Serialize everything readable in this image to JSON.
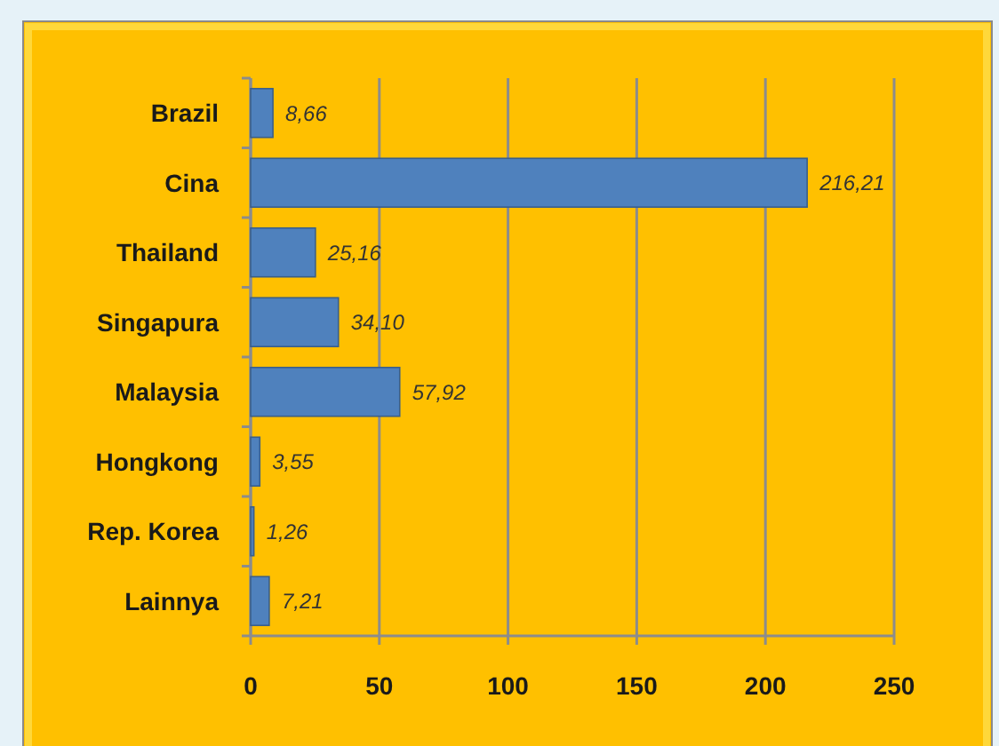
{
  "chart_data": {
    "type": "bar",
    "orientation": "horizontal",
    "categories": [
      "Brazil",
      "Cina",
      "Thailand",
      "Singapura",
      "Malaysia",
      "Hongkong",
      "Rep. Korea",
      "Lainnya"
    ],
    "values": [
      8.66,
      216.21,
      25.16,
      34.1,
      57.92,
      3.55,
      1.26,
      7.21
    ],
    "value_labels": [
      "8,66",
      "216,21",
      "25,16",
      "34,10",
      "57,92",
      "3,55",
      "1,26",
      "7,21"
    ],
    "color": "#4f81bd",
    "xlim": [
      0,
      250
    ],
    "xticks": [
      0,
      50,
      100,
      150,
      200,
      250
    ],
    "grid": "x"
  }
}
